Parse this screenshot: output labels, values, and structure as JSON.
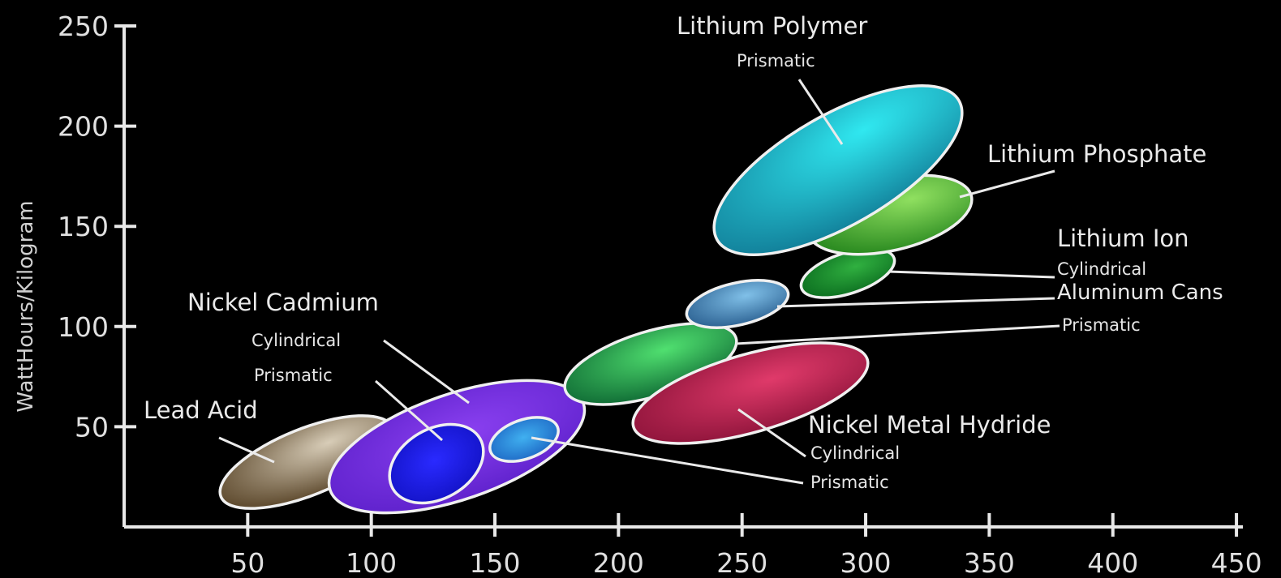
{
  "chart_data": {
    "type": "scatter",
    "title": "",
    "xlabel": "",
    "ylabel": "WattHours/Kilogram",
    "xlim": [
      0,
      460
    ],
    "ylim": [
      0,
      250
    ],
    "x_ticks": [
      50,
      100,
      150,
      200,
      250,
      300,
      350,
      400,
      450
    ],
    "y_ticks": [
      50,
      100,
      150,
      200,
      250
    ],
    "grid": false,
    "legend": "none",
    "regions": [
      {
        "label": "Lead Acid",
        "x": [
          30,
          110
        ],
        "y": [
          10,
          50
        ],
        "color": "#8a7a63"
      },
      {
        "label": "Nickel Cadmium",
        "x": [
          85,
          190
        ],
        "y": [
          8,
          67
        ],
        "color": "#6a28d8"
      },
      {
        "label": "Nickel Cadmium Cylindrical",
        "x": [
          110,
          148
        ],
        "y": [
          12,
          45
        ],
        "color": "#1f1ff0"
      },
      {
        "label": "Nickel Cadmium Prismatic",
        "x": [
          150,
          180
        ],
        "y": [
          30,
          50
        ],
        "color": "#2a8ee0"
      },
      {
        "label": "Lithium Ion Prismatic",
        "x": [
          177,
          257
        ],
        "y": [
          55,
          90
        ],
        "color": "#2aa35a"
      },
      {
        "label": "Nickel Metal Hydride Cylindrical",
        "x": [
          208,
          303
        ],
        "y": [
          45,
          88
        ],
        "color": "#b0234f"
      },
      {
        "label": "Lithium Ion Aluminum Cans",
        "x": [
          230,
          273
        ],
        "y": [
          98,
          113
        ],
        "color": "#4c8fc0"
      },
      {
        "label": "Lithium Ion Cylindrical",
        "x": [
          275,
          313
        ],
        "y": [
          110,
          132
        ],
        "color": "#1a8f30"
      },
      {
        "label": "Lithium Phosphate",
        "x": [
          275,
          347
        ],
        "y": [
          132,
          170
        ],
        "color": "#4fb038"
      },
      {
        "label": "Lithium Polymer Prismatic",
        "x": [
          240,
          345
        ],
        "y": [
          135,
          215
        ],
        "color": "#1ab0c8"
      }
    ]
  },
  "labels": {
    "lead_acid": "Lead Acid",
    "nickel_cadmium": "Nickel Cadmium",
    "nicd_cylindrical": "Cylindrical",
    "nicd_prismatic": "Prismatic",
    "lithium_polymer": "Lithium Polymer",
    "lipo_prismatic": "Prismatic",
    "lithium_phosphate": "Lithium Phosphate",
    "lithium_ion": "Lithium Ion",
    "liion_cylindrical": "Cylindrical",
    "liion_aluminum": "Aluminum Cans",
    "liion_prismatic": "Prismatic",
    "nimh": "Nickel Metal Hydride",
    "nimh_cylindrical": "Cylindrical",
    "nimh_prismatic": "Prismatic"
  }
}
